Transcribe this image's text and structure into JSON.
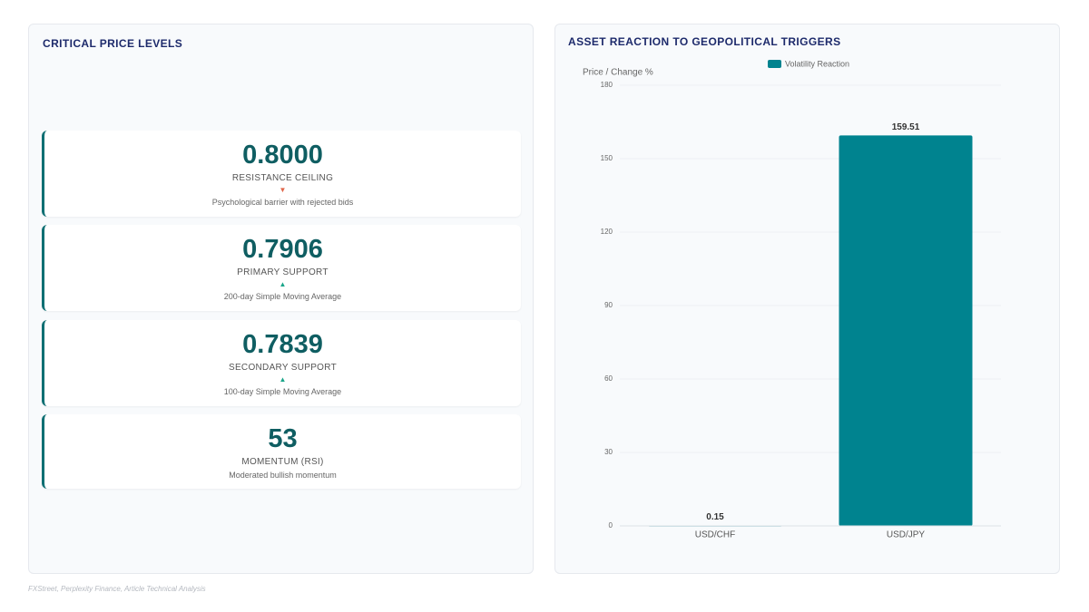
{
  "levels_panel": {
    "title": "CRITICAL PRICE LEVELS",
    "cards": [
      {
        "value": "0.8000",
        "label": "RESISTANCE CEILING",
        "arrow": "▼",
        "arrow_color": "#e0664a",
        "note": "Psychological barrier with rejected bids"
      },
      {
        "value": "0.7906",
        "label": "PRIMARY SUPPORT",
        "arrow": "▲",
        "arrow_color": "#1aa589",
        "note": "200-day Simple Moving Average"
      },
      {
        "value": "0.7839",
        "label": "SECONDARY SUPPORT",
        "arrow": "▲",
        "arrow_color": "#1aa589",
        "note": "100-day Simple Moving Average"
      },
      {
        "value": "53",
        "label": "MOMENTUM (RSI)",
        "note": "Moderated bullish momentum"
      }
    ]
  },
  "chart_data": {
    "type": "bar",
    "title": "ASSET REACTION TO GEOPOLITICAL TRIGGERS",
    "y_label": "Price / Change %",
    "categories": [
      "USD/CHF",
      "USD/JPY"
    ],
    "series": [
      {
        "name": "Volatility Reaction",
        "color": "#00838f",
        "values": [
          0.15,
          159.51
        ]
      }
    ],
    "ylim": [
      0,
      180
    ],
    "yticks": [
      0,
      30,
      60,
      90,
      120,
      150,
      180
    ],
    "grid": true,
    "legend": "top"
  },
  "source": "FXStreet, Perplexity Finance, Article Technical Analysis"
}
